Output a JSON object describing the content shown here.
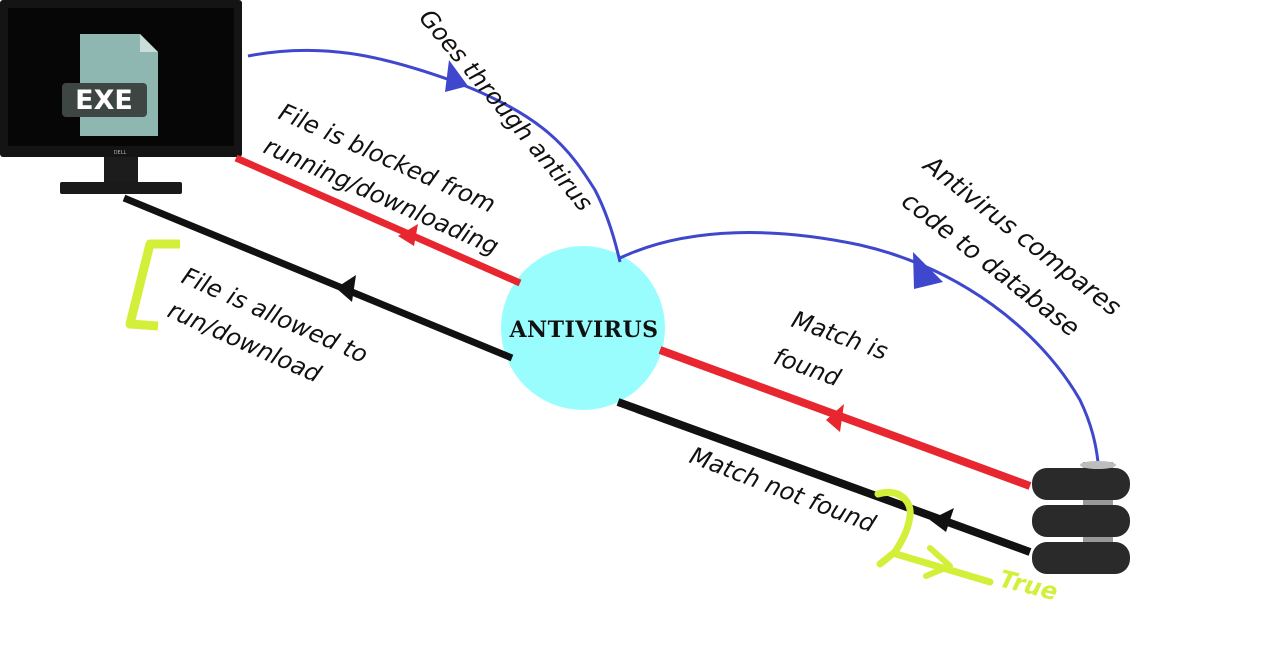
{
  "nodes": {
    "computer": {
      "file_label": "EXE",
      "brand": "DELL"
    },
    "antivirus": {
      "label": "ANTIVIRUS"
    },
    "database": {
      "label": ""
    }
  },
  "edges": {
    "goes_through": {
      "label": "Goes through antirus"
    },
    "compares": {
      "label_line1": "Antivirus compares",
      "label_line2": "code to database"
    },
    "blocked": {
      "label_line1": "File is blocked from",
      "label_line2": "running/downloading"
    },
    "allowed": {
      "label_line1": "File is allowed to",
      "label_line2": "run/download"
    },
    "match_found": {
      "label_line1": "Match is",
      "label_line2": "found"
    },
    "match_not_found": {
      "label": "Match not found"
    }
  },
  "annotations": {
    "true_label": "True"
  },
  "colors": {
    "blue": "#3f48cc",
    "red": "#e82630",
    "black": "#111111",
    "highlight": "#d4ef3a",
    "antivirus_fill": "#99fdfe",
    "exe_file": "#8fb7b2"
  }
}
